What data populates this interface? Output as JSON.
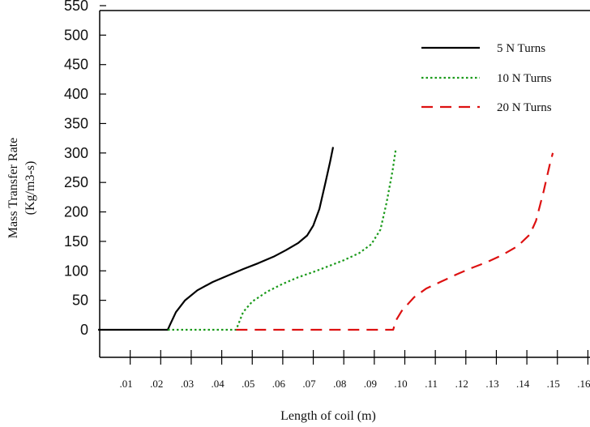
{
  "chart_data": {
    "type": "line",
    "title": "",
    "xlabel": "Length of coil (m)",
    "ylabel_line1": "Mass Transfer Rate",
    "ylabel_line2": "(Kg/m3-s)",
    "xlim": [
      0,
      0.16
    ],
    "ylim": [
      -50,
      550
    ],
    "x_ticks": [
      ".01",
      ".02",
      ".03",
      ".04",
      ".05",
      ".06",
      ".07",
      ".08",
      ".09",
      ".10",
      ".11",
      ".12",
      ".13",
      ".14",
      ".15",
      ".16"
    ],
    "y_ticks": [
      0,
      50,
      100,
      150,
      200,
      250,
      300,
      350,
      400,
      450,
      500,
      550
    ],
    "grid": false,
    "legend_position": "top-right",
    "series": [
      {
        "name": "5 N Turns",
        "color": "#000000",
        "style": "solid",
        "points": [
          [
            -0.0005,
            0
          ],
          [
            0.0223,
            0
          ],
          [
            0.023,
            8
          ],
          [
            0.025,
            30
          ],
          [
            0.028,
            50
          ],
          [
            0.032,
            67
          ],
          [
            0.037,
            81
          ],
          [
            0.042,
            92
          ],
          [
            0.047,
            103
          ],
          [
            0.052,
            113
          ],
          [
            0.057,
            124
          ],
          [
            0.061,
            135
          ],
          [
            0.065,
            147
          ],
          [
            0.068,
            160
          ],
          [
            0.07,
            177
          ],
          [
            0.072,
            205
          ],
          [
            0.074,
            250
          ],
          [
            0.0755,
            285
          ],
          [
            0.0765,
            310
          ]
        ]
      },
      {
        "name": "10 N Turns",
        "color": "#1a9a1a",
        "style": "dotted",
        "points": [
          [
            0.0223,
            0
          ],
          [
            0.0447,
            0
          ],
          [
            0.0455,
            10
          ],
          [
            0.047,
            30
          ],
          [
            0.05,
            48
          ],
          [
            0.055,
            65
          ],
          [
            0.06,
            78
          ],
          [
            0.065,
            89
          ],
          [
            0.07,
            98
          ],
          [
            0.075,
            108
          ],
          [
            0.08,
            118
          ],
          [
            0.085,
            130
          ],
          [
            0.089,
            145
          ],
          [
            0.092,
            170
          ],
          [
            0.094,
            215
          ],
          [
            0.096,
            270
          ],
          [
            0.097,
            305
          ]
        ]
      },
      {
        "name": "20 N Turns",
        "color": "#dd1111",
        "style": "dashed",
        "points": [
          [
            0.0447,
            0
          ],
          [
            0.0962,
            0
          ],
          [
            0.097,
            15
          ],
          [
            0.099,
            32
          ],
          [
            0.103,
            55
          ],
          [
            0.107,
            70
          ],
          [
            0.112,
            82
          ],
          [
            0.117,
            94
          ],
          [
            0.122,
            105
          ],
          [
            0.127,
            115
          ],
          [
            0.132,
            127
          ],
          [
            0.137,
            142
          ],
          [
            0.141,
            162
          ],
          [
            0.143,
            185
          ],
          [
            0.1455,
            235
          ],
          [
            0.1475,
            280
          ],
          [
            0.1485,
            300
          ]
        ]
      }
    ]
  }
}
